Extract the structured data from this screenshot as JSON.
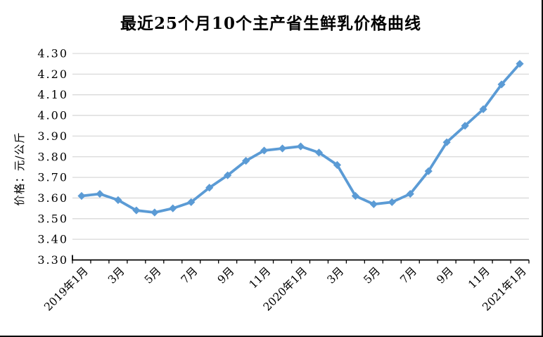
{
  "chart_data": {
    "type": "line",
    "title": "最近25个月10个主产省生鲜乳价格曲线",
    "ylabel": "价格：元/公斤",
    "xlabel": "",
    "ylim": [
      3.3,
      4.3
    ],
    "ytick_step": 0.1,
    "ytick_labels": [
      "3.30",
      "3.40",
      "3.50",
      "3.60",
      "3.70",
      "3.80",
      "3.90",
      "4.00",
      "4.10",
      "4.20",
      "4.30"
    ],
    "xtick_labels": [
      "2019年1月",
      "3月",
      "5月",
      "7月",
      "9月",
      "11月",
      "2020年1月",
      "3月",
      "5月",
      "7月",
      "9月",
      "11月",
      "2021年1月"
    ],
    "xtick_every": 2,
    "categories": [
      "2019年1月",
      "2019年2月",
      "2019年3月",
      "2019年4月",
      "2019年5月",
      "2019年6月",
      "2019年7月",
      "2019年8月",
      "2019年9月",
      "2019年10月",
      "2019年11月",
      "2019年12月",
      "2020年1月",
      "2020年2月",
      "2020年3月",
      "2020年4月",
      "2020年5月",
      "2020年6月",
      "2020年7月",
      "2020年8月",
      "2020年9月",
      "2020年10月",
      "2020年11月",
      "2020年12月",
      "2021年1月"
    ],
    "values": [
      3.61,
      3.62,
      3.59,
      3.54,
      3.53,
      3.55,
      3.58,
      3.65,
      3.71,
      3.78,
      3.83,
      3.84,
      3.85,
      3.82,
      3.76,
      3.61,
      3.57,
      3.58,
      3.62,
      3.73,
      3.87,
      3.95,
      4.03,
      4.15,
      4.25
    ],
    "grid": true,
    "legend": "none",
    "marker": "diamond",
    "line_color": "#5B9BD5",
    "grid_color": "#D9D9D9",
    "axis_color": "#000000",
    "text_color": "#000000"
  }
}
